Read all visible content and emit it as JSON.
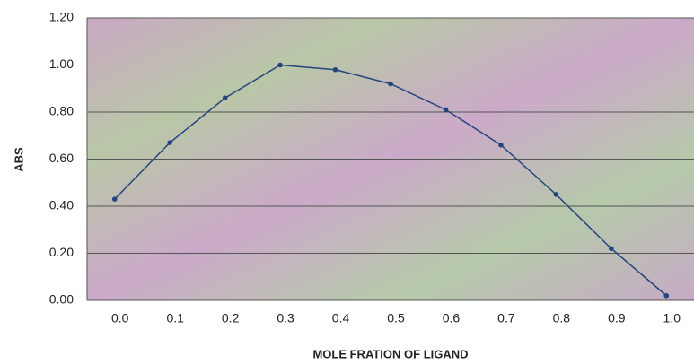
{
  "chart_data": {
    "type": "line",
    "xlabel": "MOLE FRATION OF LIGAND",
    "ylabel": "ABS",
    "categories": [
      "0.0",
      "0.1",
      "0.2",
      "0.3",
      "0.4",
      "0.5",
      "0.6",
      "0.7",
      "0.8",
      "0.9",
      "1.0"
    ],
    "values": [
      0.43,
      0.67,
      0.86,
      1.0,
      0.98,
      0.92,
      0.81,
      0.66,
      0.45,
      0.22,
      0.02
    ],
    "color": "#24447e",
    "ylim": [
      0,
      1.2
    ],
    "yticks": [
      {
        "value": 0,
        "label": "0.00"
      },
      {
        "value": 0.2,
        "label": "0.20"
      },
      {
        "value": 0.4,
        "label": "0.40"
      },
      {
        "value": 0.6,
        "label": "0.60"
      },
      {
        "value": 0.8,
        "label": "0.80"
      },
      {
        "value": 1.0,
        "label": "1.00"
      },
      {
        "value": 1.2,
        "label": "1.20"
      }
    ],
    "grid": true
  }
}
